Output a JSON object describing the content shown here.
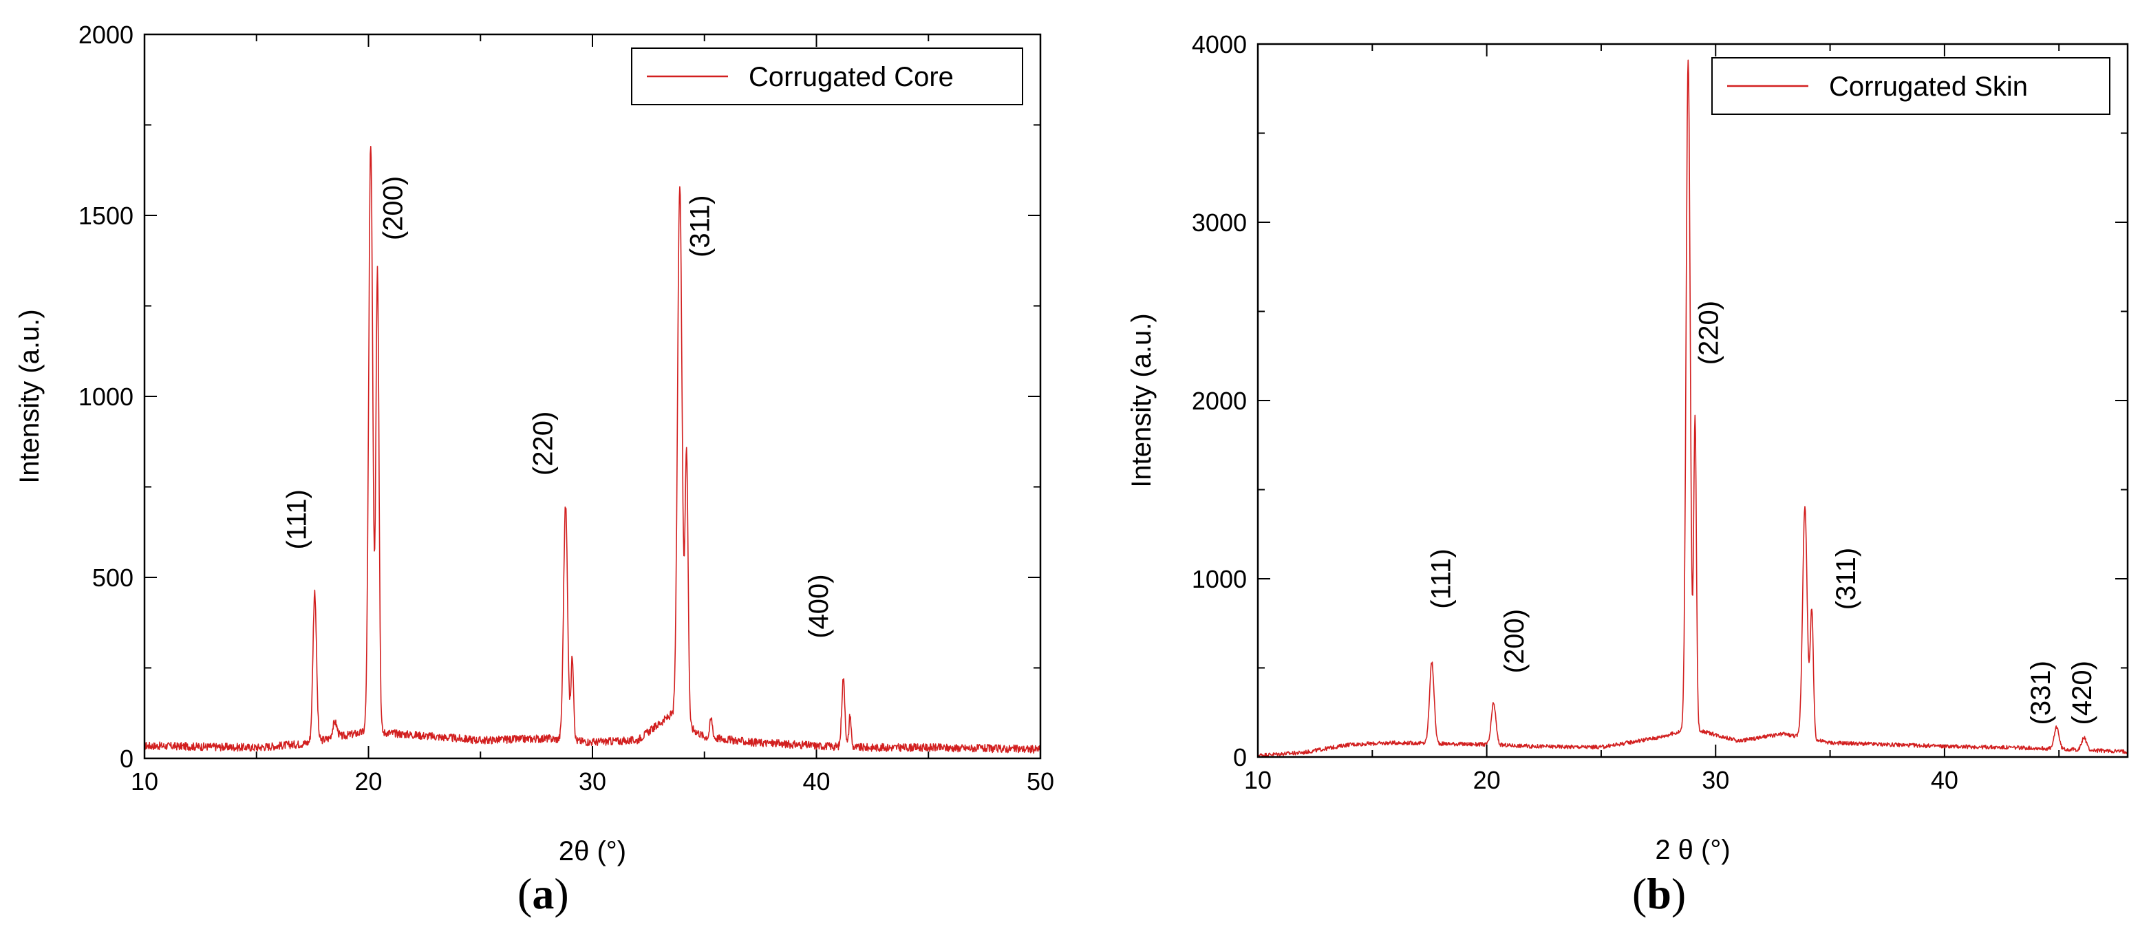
{
  "figure": {
    "caption_a": "a",
    "caption_b": "b"
  },
  "chart_data": [
    {
      "panel": "a",
      "type": "line",
      "xlabel": "2θ (°)",
      "ylabel": "Intensity (a.u.)",
      "xlim": [
        10,
        50
      ],
      "ylim": [
        0,
        2000
      ],
      "xticks": [
        10,
        20,
        30,
        40,
        50
      ],
      "yticks": [
        0,
        500,
        1000,
        1500,
        2000
      ],
      "legend": {
        "position": "top-right",
        "entries": [
          "Corrugated Core"
        ]
      },
      "series": [
        {
          "name": "Corrugated Core",
          "color": "#d21f1f",
          "baseline": [
            [
              10,
              35
            ],
            [
              15,
              30
            ],
            [
              17,
              40
            ],
            [
              20,
              75
            ],
            [
              22,
              65
            ],
            [
              25,
              50
            ],
            [
              28,
              55
            ],
            [
              30,
              45
            ],
            [
              32,
              50
            ],
            [
              33.5,
              120
            ],
            [
              35,
              60
            ],
            [
              37,
              45
            ],
            [
              40,
              35
            ],
            [
              42,
              30
            ],
            [
              45,
              30
            ],
            [
              50,
              25
            ]
          ],
          "peaks": [
            {
              "x": 17.6,
              "y": 460,
              "w": 0.08
            },
            {
              "x": 18.5,
              "y": 100,
              "w": 0.1
            },
            {
              "x": 20.1,
              "y": 1700,
              "w": 0.09
            },
            {
              "x": 20.4,
              "y": 1350,
              "w": 0.07
            },
            {
              "x": 28.8,
              "y": 700,
              "w": 0.09
            },
            {
              "x": 29.1,
              "y": 280,
              "w": 0.06
            },
            {
              "x": 33.9,
              "y": 1590,
              "w": 0.1
            },
            {
              "x": 34.2,
              "y": 840,
              "w": 0.07
            },
            {
              "x": 35.3,
              "y": 110,
              "w": 0.06
            },
            {
              "x": 41.2,
              "y": 220,
              "w": 0.07
            },
            {
              "x": 41.5,
              "y": 120,
              "w": 0.05
            }
          ]
        }
      ],
      "annotations": [
        {
          "text": "(111)",
          "x": 17.2,
          "y": 660
        },
        {
          "text": "(200)",
          "x": 21.5,
          "y": 1520
        },
        {
          "text": "(220)",
          "x": 28.2,
          "y": 870
        },
        {
          "text": "(311)",
          "x": 35.2,
          "y": 1470
        },
        {
          "text": "(400)",
          "x": 40.5,
          "y": 420
        }
      ]
    },
    {
      "panel": "b",
      "type": "line",
      "xlabel": "2 θ (°)",
      "ylabel": "Intensity (a.u.)",
      "xlim": [
        10,
        48
      ],
      "ylim": [
        0,
        4000
      ],
      "xticks": [
        10,
        20,
        30,
        40
      ],
      "yticks": [
        0,
        1000,
        2000,
        3000,
        4000
      ],
      "legend": {
        "position": "top-right",
        "entries": [
          "Corrugated Skin"
        ]
      },
      "series": [
        {
          "name": "Corrugated Skin",
          "color": "#d21f1f",
          "baseline": [
            [
              10,
              10
            ],
            [
              12,
              25
            ],
            [
              14,
              70
            ],
            [
              16,
              80
            ],
            [
              18,
              75
            ],
            [
              20,
              70
            ],
            [
              22,
              60
            ],
            [
              25,
              55
            ],
            [
              27.5,
              110
            ],
            [
              29,
              160
            ],
            [
              31,
              90
            ],
            [
              33,
              130
            ],
            [
              35,
              80
            ],
            [
              40,
              60
            ],
            [
              44,
              50
            ],
            [
              48,
              30
            ]
          ],
          "peaks": [
            {
              "x": 17.6,
              "y": 530,
              "w": 0.1
            },
            {
              "x": 20.3,
              "y": 300,
              "w": 0.1
            },
            {
              "x": 28.8,
              "y": 3920,
              "w": 0.09
            },
            {
              "x": 29.1,
              "y": 1900,
              "w": 0.06
            },
            {
              "x": 33.9,
              "y": 1400,
              "w": 0.1
            },
            {
              "x": 34.2,
              "y": 820,
              "w": 0.07
            },
            {
              "x": 44.9,
              "y": 170,
              "w": 0.1
            },
            {
              "x": 46.1,
              "y": 110,
              "w": 0.1
            }
          ]
        }
      ],
      "annotations": [
        {
          "text": "(111)",
          "x": 18.4,
          "y": 1000
        },
        {
          "text": "(200)",
          "x": 21.6,
          "y": 650
        },
        {
          "text": "(220)",
          "x": 30.1,
          "y": 2380
        },
        {
          "text": "(311)",
          "x": 36.1,
          "y": 1000
        },
        {
          "text": "(331)",
          "x": 44.6,
          "y": 360
        },
        {
          "text": "(420)",
          "x": 46.4,
          "y": 360
        }
      ]
    }
  ]
}
